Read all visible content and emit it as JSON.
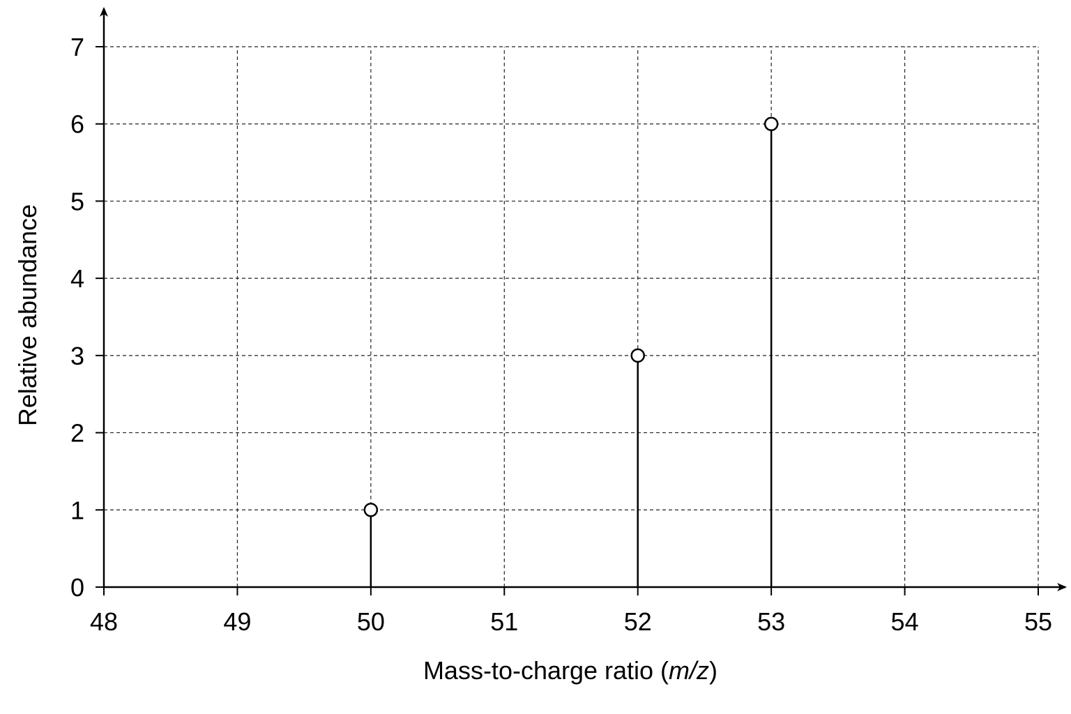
{
  "chart_data": {
    "type": "scatter",
    "style": "stem",
    "x": [
      50,
      52,
      53
    ],
    "values": [
      1,
      3,
      6
    ],
    "xlabel": {
      "prefix": "Mass-to-charge ratio (",
      "italic": "m/z",
      "suffix": ")"
    },
    "ylabel": "Relative abundance",
    "xlim": [
      48,
      55
    ],
    "ylim": [
      0,
      7
    ],
    "xticks": [
      "48",
      "49",
      "50",
      "51",
      "52",
      "53",
      "54",
      "55"
    ],
    "yticks": [
      "0",
      "1",
      "2",
      "3",
      "4",
      "5",
      "6",
      "7"
    ],
    "grid": true,
    "legend": "none",
    "colors": {
      "axis": "#000000",
      "grid": "#222222",
      "marker_fill": "#ffffff"
    }
  }
}
